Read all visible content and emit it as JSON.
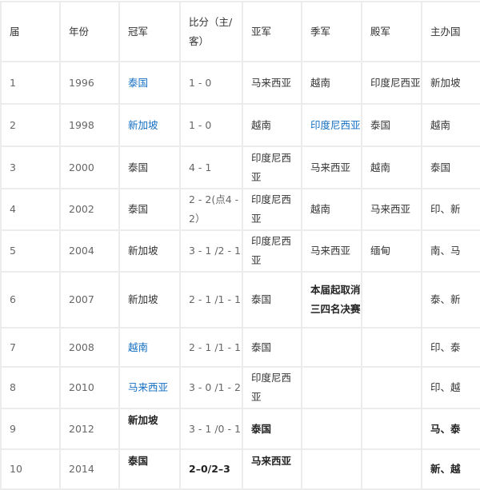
{
  "table": {
    "headers": [
      "届",
      "年份",
      "冠军",
      "比分（主/客）",
      "亚军",
      "季军",
      "殿军",
      "主办国"
    ],
    "rows": [
      [
        {
          "t": "1",
          "num": true
        },
        {
          "t": "1996",
          "num": true
        },
        {
          "t": "泰国",
          "link": true
        },
        {
          "t": "1 - 0",
          "num": true
        },
        {
          "t": "马来西亚"
        },
        {
          "t": "越南"
        },
        {
          "t": "印度尼西亚"
        },
        {
          "t": "新加坡"
        }
      ],
      [
        {
          "t": "2",
          "num": true
        },
        {
          "t": "1998",
          "num": true
        },
        {
          "t": "新加坡",
          "link": true
        },
        {
          "t": "1 - 0",
          "num": true
        },
        {
          "t": "越南"
        },
        {
          "t": "印度尼西亚",
          "link": true
        },
        {
          "t": "泰国"
        },
        {
          "t": "越南"
        }
      ],
      [
        {
          "t": "3",
          "num": true
        },
        {
          "t": "2000",
          "num": true
        },
        {
          "t": "泰国"
        },
        {
          "t": "4 - 1",
          "num": true
        },
        {
          "t": "印度尼西亚"
        },
        {
          "t": "马来西亚"
        },
        {
          "t": "越南"
        },
        {
          "t": "泰国"
        }
      ],
      [
        {
          "t": "4",
          "num": true
        },
        {
          "t": "2002",
          "num": true
        },
        {
          "t": "泰国"
        },
        {
          "t": "2 - 2(点4 - 2）",
          "num": true
        },
        {
          "t": "印度尼西亚"
        },
        {
          "t": "越南"
        },
        {
          "t": "马来西亚"
        },
        {
          "t": "印、新"
        }
      ],
      [
        {
          "t": "5",
          "num": true
        },
        {
          "t": "2004",
          "num": true
        },
        {
          "t": "新加坡"
        },
        {
          "t": "3 - 1 /2 - 1",
          "num": true
        },
        {
          "t": "印度尼西亚"
        },
        {
          "t": "马来西亚"
        },
        {
          "t": "缅甸"
        },
        {
          "t": "南、马"
        }
      ],
      [
        {
          "t": "6",
          "num": true
        },
        {
          "t": "2007",
          "num": true
        },
        {
          "t": "新加坡"
        },
        {
          "t": "2 - 1 /1 - 1",
          "num": true
        },
        {
          "t": "泰国"
        },
        {
          "t": "本届起取消三四名决赛",
          "bold": true
        },
        {
          "t": ""
        },
        {
          "t": "泰、新"
        }
      ],
      [
        {
          "t": "7",
          "num": true
        },
        {
          "t": "2008",
          "num": true
        },
        {
          "t": "越南",
          "link": true
        },
        {
          "t": "2 - 1 /1 - 1",
          "num": true
        },
        {
          "t": "泰国"
        },
        {
          "t": ""
        },
        {
          "t": ""
        },
        {
          "t": "印、泰"
        }
      ],
      [
        {
          "t": "8",
          "num": true
        },
        {
          "t": "2010",
          "num": true
        },
        {
          "t": "马来西亚",
          "link": true
        },
        {
          "t": "3 - 0 /1 - 2",
          "num": true
        },
        {
          "t": "印度尼西亚"
        },
        {
          "t": ""
        },
        {
          "t": ""
        },
        {
          "t": "印、越"
        }
      ],
      [
        {
          "t": "9",
          "num": true
        },
        {
          "t": "2012",
          "num": true
        },
        {
          "t": "新加坡",
          "bold": true,
          "top": true
        },
        {
          "t": "3 - 1 /0 - 1",
          "num": true
        },
        {
          "t": "泰国",
          "bold": true
        },
        {
          "t": ""
        },
        {
          "t": ""
        },
        {
          "t": "马、泰",
          "bold": true
        }
      ],
      [
        {
          "t": "10",
          "num": true
        },
        {
          "t": "2014",
          "num": true
        },
        {
          "t": "泰国",
          "bold": true,
          "top": true
        },
        {
          "t": "2–0/2–3",
          "bold": true
        },
        {
          "t": "马来西亚",
          "bold": true,
          "top": true
        },
        {
          "t": ""
        },
        {
          "t": ""
        },
        {
          "t": "新、越",
          "bold": true
        }
      ]
    ]
  },
  "colors": {
    "link": "#136ec2",
    "text": "#333333",
    "number": "#666666",
    "border": "#ececec"
  }
}
